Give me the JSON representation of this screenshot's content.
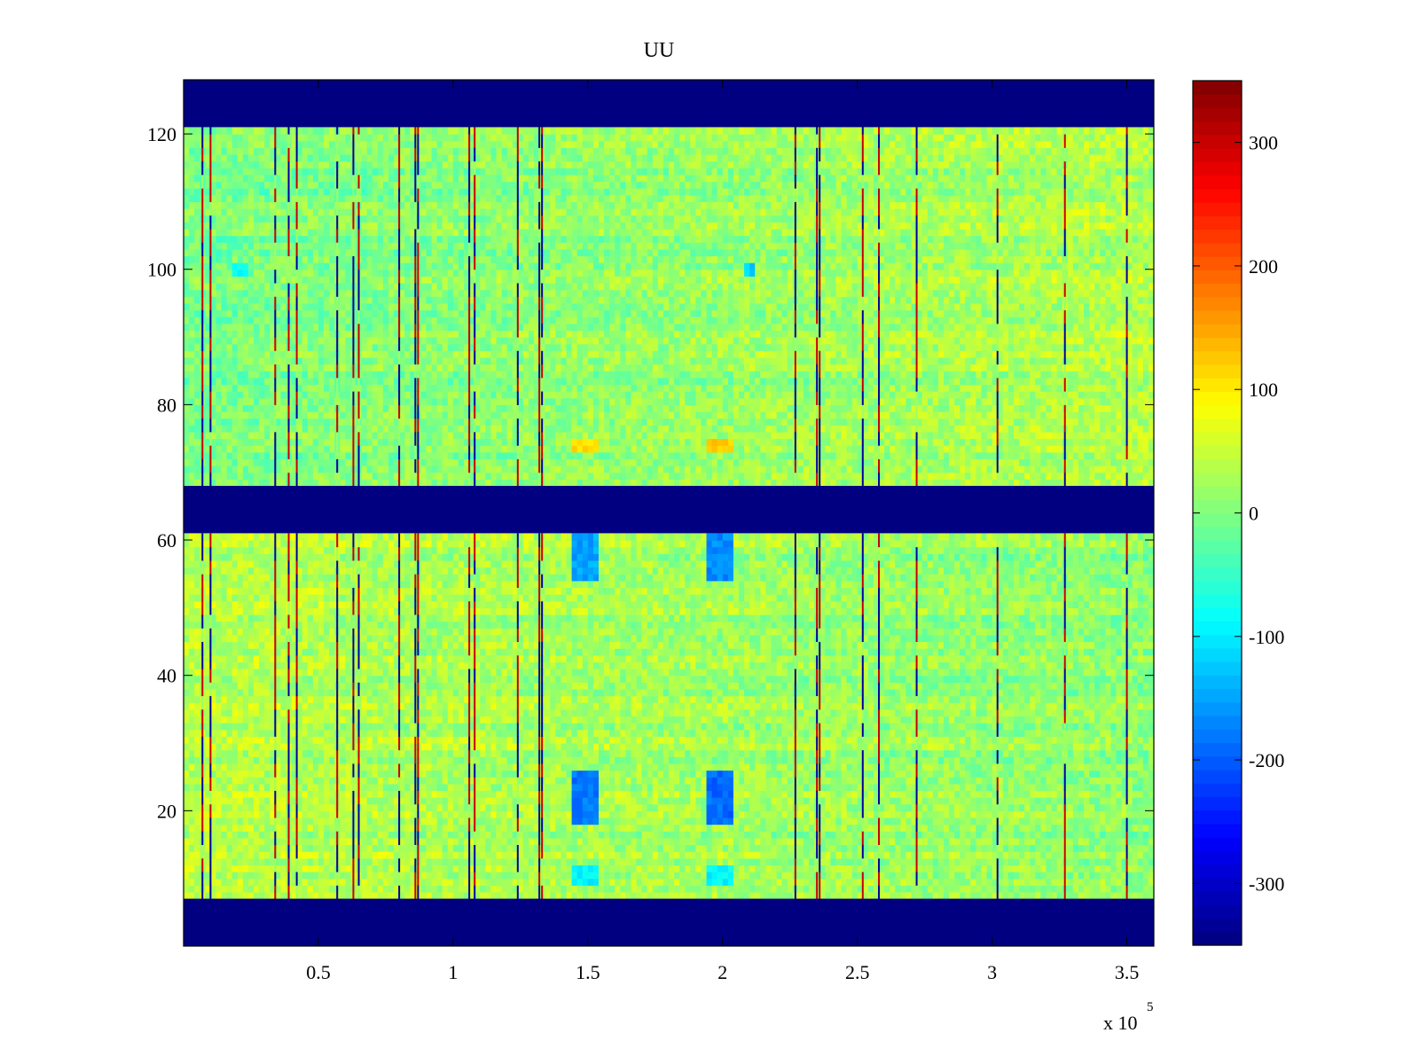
{
  "chart_data": {
    "type": "heatmap",
    "title": "UU",
    "xlabel": "",
    "ylabel": "",
    "x_multiplier": {
      "prefix": "x 10",
      "exponent": "5"
    },
    "xlim": [
      0,
      360000
    ],
    "ylim": [
      0,
      128
    ],
    "x_ticks": [
      {
        "value": 50000,
        "label": "0.5"
      },
      {
        "value": 100000,
        "label": "1"
      },
      {
        "value": 150000,
        "label": "1.5"
      },
      {
        "value": 200000,
        "label": "2"
      },
      {
        "value": 250000,
        "label": "2.5"
      },
      {
        "value": 300000,
        "label": "3"
      },
      {
        "value": 350000,
        "label": "3.5"
      }
    ],
    "y_ticks": [
      {
        "value": 20,
        "label": "20"
      },
      {
        "value": 40,
        "label": "40"
      },
      {
        "value": 60,
        "label": "60"
      },
      {
        "value": 80,
        "label": "80"
      },
      {
        "value": 100,
        "label": "100"
      },
      {
        "value": 120,
        "label": "120"
      }
    ],
    "colorbar": {
      "colormap": "jet",
      "clim": [
        -350,
        350
      ],
      "ticks": [
        {
          "value": 300,
          "label": "300"
        },
        {
          "value": 200,
          "label": "200"
        },
        {
          "value": 100,
          "label": "100"
        },
        {
          "value": 0,
          "label": "0"
        },
        {
          "value": -100,
          "label": "-100"
        },
        {
          "value": -200,
          "label": "-200"
        },
        {
          "value": -300,
          "label": "-300"
        }
      ]
    },
    "masked_bands": [
      {
        "y_range": [
          0,
          7
        ],
        "value": -350
      },
      {
        "y_range": [
          61,
          68
        ],
        "value": -350
      },
      {
        "y_range": [
          121,
          128
        ],
        "value": -350
      }
    ],
    "data_regions": [
      {
        "y_range": [
          68,
          121
        ],
        "typical_value": 10
      },
      {
        "y_range": [
          7,
          61
        ],
        "typical_value": 30
      }
    ],
    "blue_patches": [
      {
        "x_range": [
          143000,
          153000
        ],
        "y_range": [
          54,
          61
        ],
        "value": -150
      },
      {
        "x_range": [
          193000,
          203000
        ],
        "y_range": [
          54,
          61
        ],
        "value": -170
      },
      {
        "x_range": [
          143000,
          153000
        ],
        "y_range": [
          18,
          26
        ],
        "value": -180
      },
      {
        "x_range": [
          193000,
          203000
        ],
        "y_range": [
          18,
          26
        ],
        "value": -190
      },
      {
        "x_range": [
          143000,
          153000
        ],
        "y_range": [
          9,
          12
        ],
        "value": -90
      },
      {
        "x_range": [
          193000,
          203000
        ],
        "y_range": [
          9,
          12
        ],
        "value": -90
      },
      {
        "x_range": [
          18000,
          23000
        ],
        "y_range": [
          99,
          101
        ],
        "value": -80
      },
      {
        "x_range": [
          207000,
          212000
        ],
        "y_range": [
          99,
          101
        ],
        "value": -120
      }
    ],
    "yellow_patches": [
      {
        "x_range": [
          143000,
          153000
        ],
        "y_range": [
          73,
          75
        ],
        "value": 110
      },
      {
        "x_range": [
          193000,
          203000
        ],
        "y_range": [
          73,
          75
        ],
        "value": 120
      }
    ],
    "vertical_streaks_x": [
      7000,
      10000,
      34000,
      39000,
      42000,
      57000,
      63000,
      65000,
      80000,
      86000,
      87000,
      106000,
      108000,
      124000,
      132000,
      133000,
      227000,
      235000,
      236000,
      252000,
      258000,
      272000,
      302000,
      327000,
      350000
    ],
    "grid": false,
    "legend": "none"
  }
}
